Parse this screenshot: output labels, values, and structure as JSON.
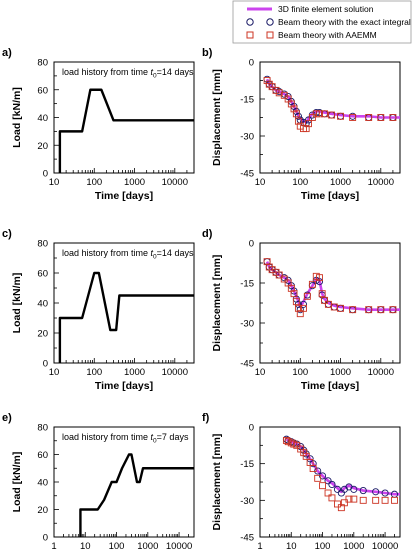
{
  "legend": {
    "entries": [
      {
        "label": "3D finite element solution",
        "color": "#cc44ee",
        "marker": "line"
      },
      {
        "label": "Beam theory with the exact integral formula",
        "color": "#1a1a66",
        "marker": "circle"
      },
      {
        "label": "Beam theory with AAEMM",
        "color": "#cc3322",
        "marker": "square"
      }
    ]
  },
  "chart_data": [
    {
      "panel": "a)",
      "type": "line",
      "annotation": {
        "pre": "load history from time ",
        "var": "t",
        "sub": "0",
        "post": "=14 days"
      },
      "xlabel": "Time [days]",
      "ylabel": "Load [kN/m]",
      "x_scale": "log",
      "xlim": [
        10,
        30000
      ],
      "ylim": [
        0,
        80
      ],
      "xticks": [
        10,
        100,
        1000,
        10000
      ],
      "xtick_labels": [
        "10",
        "100",
        "1000",
        "10000"
      ],
      "yticks": [
        0,
        20,
        40,
        60,
        80
      ],
      "ytick_labels": [
        "0",
        "20",
        "40",
        "60",
        "80"
      ],
      "series": [
        {
          "style": "load",
          "x": [
            14,
            14,
            50,
            80,
            150,
            300,
            30000
          ],
          "y": [
            0,
            30,
            30,
            60,
            60,
            38,
            38
          ]
        }
      ]
    },
    {
      "panel": "b)",
      "type": "line",
      "xlabel": "Time [days]",
      "ylabel": "Displacement [mm]",
      "x_scale": "log",
      "xlim": [
        10,
        30000
      ],
      "ylim": [
        -45,
        0
      ],
      "xticks": [
        10,
        100,
        1000,
        10000
      ],
      "xtick_labels": [
        "10",
        "100",
        "1000",
        "10000"
      ],
      "yticks": [
        -45,
        -30,
        -15,
        0
      ],
      "ytick_labels": [
        "-45",
        "-30",
        "-15",
        "0"
      ],
      "series": [
        {
          "style": "fem",
          "x": [
            15,
            17,
            20,
            25,
            30,
            40,
            50,
            60,
            70,
            80,
            90,
            100,
            120,
            140,
            160,
            200,
            250,
            300,
            400,
            600,
            1000,
            2000,
            5000,
            10000,
            20000,
            30000
          ],
          "y": [
            -7,
            -9,
            -10,
            -11.5,
            -12,
            -13,
            -14,
            -16,
            -18,
            -20,
            -22,
            -23,
            -24,
            -24.5,
            -23,
            -21,
            -20,
            -20,
            -20.5,
            -21,
            -21.5,
            -22,
            -22,
            -22.5,
            -22.5,
            -22.5
          ]
        },
        {
          "style": "exact",
          "x": [
            15,
            17,
            20,
            25,
            30,
            40,
            50,
            60,
            70,
            80,
            90,
            100,
            120,
            140,
            160,
            200,
            250,
            300,
            400,
            600,
            1000,
            2000,
            5000,
            10000,
            20000
          ],
          "y": [
            -7,
            -9,
            -10,
            -11.5,
            -12,
            -13,
            -14,
            -16,
            -18,
            -20,
            -22,
            -23.5,
            -24.5,
            -25,
            -23.5,
            -21.5,
            -20.5,
            -20.5,
            -21,
            -21.5,
            -22,
            -22,
            -22.5,
            -22.5,
            -22.5
          ]
        },
        {
          "style": "aaemm",
          "x": [
            15,
            17,
            20,
            25,
            30,
            40,
            50,
            60,
            70,
            80,
            90,
            100,
            120,
            140,
            160,
            200,
            250,
            300,
            400,
            600,
            1000,
            2000,
            5000,
            10000,
            20000
          ],
          "y": [
            -7.5,
            -9,
            -10,
            -11.5,
            -12.5,
            -13.5,
            -15,
            -17,
            -19,
            -21,
            -24,
            -26,
            -27,
            -27,
            -25,
            -22.5,
            -21,
            -21,
            -21,
            -21.5,
            -22,
            -22.5,
            -22.5,
            -22.5,
            -22.5
          ]
        }
      ]
    },
    {
      "panel": "c)",
      "type": "line",
      "annotation": {
        "pre": "load history from time ",
        "var": "t",
        "sub": "0",
        "post": "=14 days"
      },
      "xlabel": "Time [days]",
      "ylabel": "Load [kN/m]",
      "x_scale": "log",
      "xlim": [
        10,
        30000
      ],
      "ylim": [
        0,
        80
      ],
      "xticks": [
        10,
        100,
        1000,
        10000
      ],
      "xtick_labels": [
        "10",
        "100",
        "1000",
        "10000"
      ],
      "yticks": [
        0,
        20,
        40,
        60,
        80
      ],
      "ytick_labels": [
        "0",
        "20",
        "40",
        "60",
        "80"
      ],
      "series": [
        {
          "style": "load",
          "x": [
            14,
            14,
            50,
            100,
            130,
            250,
            350,
            420,
            30000
          ],
          "y": [
            0,
            30,
            30,
            60,
            60,
            22,
            22,
            45,
            45
          ]
        }
      ]
    },
    {
      "panel": "d)",
      "type": "line",
      "xlabel": "Time [days]",
      "ylabel": "Displacement [mm]",
      "x_scale": "log",
      "xlim": [
        10,
        30000
      ],
      "ylim": [
        -45,
        0
      ],
      "xticks": [
        10,
        100,
        1000,
        10000
      ],
      "xtick_labels": [
        "10",
        "100",
        "1000",
        "10000"
      ],
      "yticks": [
        -45,
        -30,
        -15,
        0
      ],
      "ytick_labels": [
        "-45",
        "-30",
        "-15",
        "0"
      ],
      "series": [
        {
          "style": "fem",
          "x": [
            15,
            17,
            20,
            25,
            30,
            40,
            50,
            60,
            70,
            80,
            90,
            100,
            120,
            150,
            200,
            250,
            300,
            350,
            400,
            500,
            700,
            1000,
            2000,
            5000,
            10000,
            20000,
            30000
          ],
          "y": [
            -7,
            -9,
            -10,
            -11,
            -12,
            -13,
            -14,
            -16,
            -18,
            -20,
            -22,
            -24,
            -22,
            -19,
            -16,
            -13.5,
            -14,
            -19,
            -21,
            -22.5,
            -23.5,
            -24,
            -24.5,
            -25,
            -25,
            -25,
            -25
          ]
        },
        {
          "style": "exact",
          "x": [
            15,
            17,
            20,
            25,
            30,
            40,
            50,
            60,
            70,
            80,
            90,
            100,
            120,
            150,
            200,
            250,
            300,
            350,
            400,
            500,
            700,
            1000,
            2000,
            5000,
            10000,
            20000
          ],
          "y": [
            -7,
            -9,
            -10,
            -11,
            -12,
            -13,
            -14,
            -16,
            -18,
            -21,
            -23,
            -25,
            -23,
            -19.5,
            -16,
            -14,
            -14.5,
            -19.5,
            -21.5,
            -23,
            -24,
            -24.5,
            -25,
            -25,
            -25,
            -25
          ]
        },
        {
          "style": "aaemm",
          "x": [
            15,
            17,
            20,
            25,
            30,
            40,
            50,
            60,
            70,
            80,
            90,
            100,
            120,
            150,
            200,
            250,
            300,
            350,
            400,
            500,
            700,
            1000,
            2000,
            5000,
            10000,
            20000
          ],
          "y": [
            -7,
            -9,
            -10,
            -11,
            -12,
            -13.5,
            -15,
            -17,
            -19,
            -22,
            -24.5,
            -26.5,
            -24.5,
            -20,
            -15.5,
            -12.5,
            -13,
            -19,
            -21.5,
            -23,
            -24,
            -24.5,
            -25,
            -25,
            -25,
            -25
          ]
        }
      ]
    },
    {
      "panel": "e)",
      "type": "line",
      "annotation": {
        "pre": "load history from time ",
        "var": "t",
        "sub": "0",
        "post": "=7 days"
      },
      "xlabel": "Time [days]",
      "ylabel": "Load [kN/m]",
      "x_scale": "log",
      "xlim": [
        1,
        30000
      ],
      "ylim": [
        0,
        80
      ],
      "xticks": [
        1,
        10,
        100,
        1000,
        10000
      ],
      "xtick_labels": [
        "1",
        "10",
        "100",
        "1000",
        "10000"
      ],
      "yticks": [
        0,
        20,
        40,
        60,
        80
      ],
      "ytick_labels": [
        "0",
        "20",
        "40",
        "60",
        "80"
      ],
      "series": [
        {
          "style": "load",
          "x": [
            7,
            7,
            25,
            40,
            70,
            100,
            150,
            250,
            300,
            450,
            550,
            700,
            1000,
            30000
          ],
          "y": [
            0,
            20,
            20,
            27,
            40,
            40,
            50,
            60,
            60,
            40,
            40,
            50,
            50,
            50
          ]
        }
      ]
    },
    {
      "panel": "f)",
      "type": "line",
      "xlabel": "Time [days]",
      "ylabel": "Displacement [mm]",
      "x_scale": "log",
      "xlim": [
        1,
        30000
      ],
      "ylim": [
        -45,
        0
      ],
      "xticks": [
        1,
        10,
        100,
        1000,
        10000
      ],
      "xtick_labels": [
        "1",
        "10",
        "100",
        "1000",
        "10000"
      ],
      "yticks": [
        -45,
        -30,
        -15,
        0
      ],
      "ytick_labels": [
        "-45",
        "-30",
        "-15",
        "0"
      ],
      "series": [
        {
          "style": "fem",
          "x": [
            7,
            8,
            10,
            12,
            15,
            20,
            25,
            30,
            40,
            50,
            70,
            100,
            150,
            200,
            300,
            400,
            500,
            700,
            1000,
            2000,
            5000,
            10000,
            20000,
            30000
          ],
          "y": [
            -5,
            -5.5,
            -6,
            -6.5,
            -7,
            -8,
            -9.5,
            -11,
            -13,
            -15,
            -18,
            -20,
            -22,
            -23,
            -25,
            -26.5,
            -25,
            -24,
            -25,
            -26,
            -26.5,
            -27,
            -27.5,
            -27.5
          ]
        },
        {
          "style": "exact",
          "x": [
            7,
            8,
            10,
            12,
            15,
            20,
            25,
            30,
            40,
            50,
            70,
            100,
            150,
            200,
            300,
            400,
            500,
            700,
            1000,
            2000,
            5000,
            10000,
            20000
          ],
          "y": [
            -5,
            -5.5,
            -6,
            -6.5,
            -7,
            -8,
            -9.5,
            -11,
            -13,
            -15,
            -18,
            -20,
            -22,
            -23.5,
            -25.5,
            -27,
            -25.5,
            -24.5,
            -25.5,
            -26,
            -26.5,
            -27,
            -27.5
          ]
        },
        {
          "style": "aaemm",
          "x": [
            7,
            8,
            10,
            12,
            15,
            20,
            25,
            30,
            40,
            50,
            70,
            100,
            150,
            200,
            300,
            400,
            500,
            700,
            1000,
            2000,
            5000,
            10000,
            20000
          ],
          "y": [
            -5.5,
            -6,
            -6.5,
            -7,
            -7.5,
            -9,
            -10.5,
            -12,
            -14.5,
            -17,
            -21,
            -24,
            -27,
            -29,
            -31.5,
            -33,
            -31,
            -29.5,
            -29.5,
            -30,
            -30,
            -30,
            -30
          ]
        }
      ]
    }
  ]
}
